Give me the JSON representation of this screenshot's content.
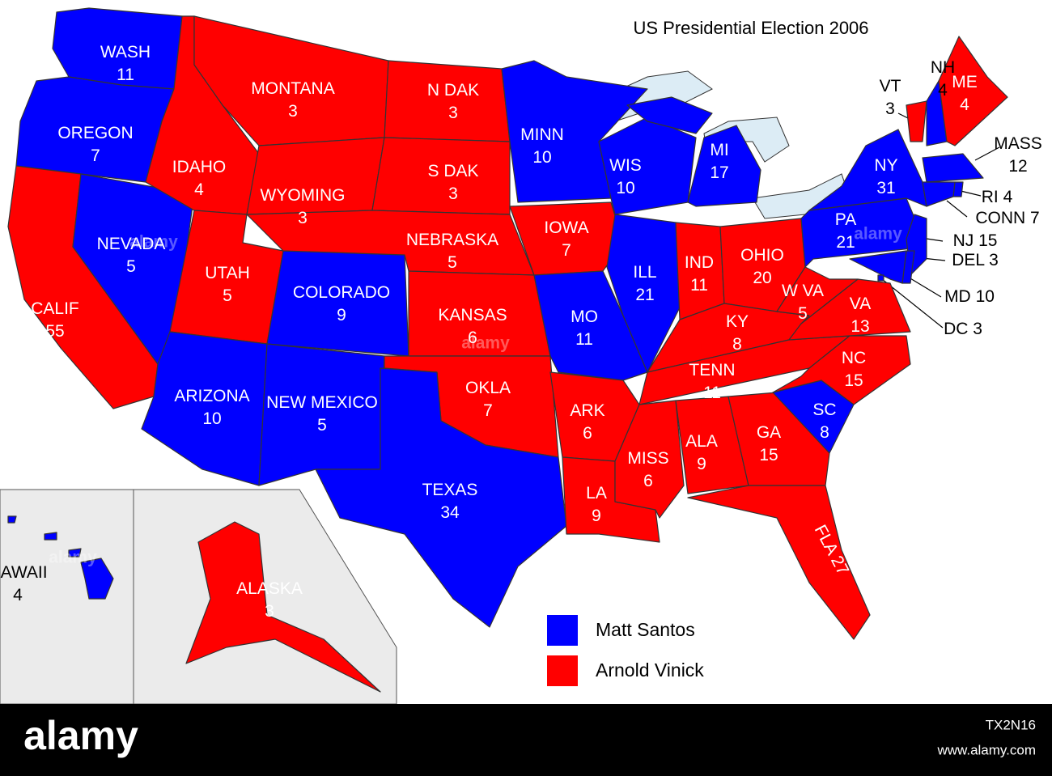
{
  "title": "US Presidential Election 2006",
  "legend": [
    {
      "name": "Matt Santos",
      "color": "#0000ff"
    },
    {
      "name": "Arnold Vinick",
      "color": "#ff0000"
    }
  ],
  "states": [
    {
      "name": "WASH",
      "votes": 11,
      "color": "#0000ff"
    },
    {
      "name": "OREGON",
      "votes": 7,
      "color": "#0000ff"
    },
    {
      "name": "CALIF",
      "votes": 55,
      "color": "#ff0000"
    },
    {
      "name": "NEVADA",
      "votes": 5,
      "color": "#0000ff"
    },
    {
      "name": "IDAHO",
      "votes": 4,
      "color": "#ff0000"
    },
    {
      "name": "MONTANA",
      "votes": 3,
      "color": "#ff0000"
    },
    {
      "name": "WYOMING",
      "votes": 3,
      "color": "#ff0000"
    },
    {
      "name": "UTAH",
      "votes": 5,
      "color": "#ff0000"
    },
    {
      "name": "COLORADO",
      "votes": 9,
      "color": "#0000ff"
    },
    {
      "name": "ARIZONA",
      "votes": 10,
      "color": "#0000ff"
    },
    {
      "name": "NEW MEXICO",
      "votes": 5,
      "color": "#0000ff"
    },
    {
      "name": "N DAK",
      "votes": 3,
      "color": "#ff0000"
    },
    {
      "name": "S DAK",
      "votes": 3,
      "color": "#ff0000"
    },
    {
      "name": "NEBRASKA",
      "votes": 5,
      "color": "#ff0000"
    },
    {
      "name": "KANSAS",
      "votes": 6,
      "color": "#ff0000"
    },
    {
      "name": "OKLA",
      "votes": 7,
      "color": "#ff0000"
    },
    {
      "name": "TEXAS",
      "votes": 34,
      "color": "#0000ff"
    },
    {
      "name": "MINN",
      "votes": 10,
      "color": "#0000ff"
    },
    {
      "name": "IOWA",
      "votes": 7,
      "color": "#ff0000"
    },
    {
      "name": "MO",
      "votes": 11,
      "color": "#0000ff"
    },
    {
      "name": "ARK",
      "votes": 6,
      "color": "#ff0000"
    },
    {
      "name": "LA",
      "votes": 9,
      "color": "#ff0000"
    },
    {
      "name": "WIS",
      "votes": 10,
      "color": "#0000ff"
    },
    {
      "name": "ILL",
      "votes": 21,
      "color": "#0000ff"
    },
    {
      "name": "MI",
      "votes": 17,
      "color": "#0000ff"
    },
    {
      "name": "IND",
      "votes": 11,
      "color": "#ff0000"
    },
    {
      "name": "OHIO",
      "votes": 20,
      "color": "#ff0000"
    },
    {
      "name": "KY",
      "votes": 8,
      "color": "#ff0000"
    },
    {
      "name": "TENN",
      "votes": 11,
      "color": "#ff0000"
    },
    {
      "name": "MISS",
      "votes": 6,
      "color": "#ff0000"
    },
    {
      "name": "ALA",
      "votes": 9,
      "color": "#ff0000"
    },
    {
      "name": "GA",
      "votes": 15,
      "color": "#ff0000"
    },
    {
      "name": "SC",
      "votes": 8,
      "color": "#0000ff"
    },
    {
      "name": "NC",
      "votes": 15,
      "color": "#ff0000"
    },
    {
      "name": "VA",
      "votes": 13,
      "color": "#ff0000"
    },
    {
      "name": "W VA",
      "votes": 5,
      "color": "#ff0000"
    },
    {
      "name": "FLA",
      "votes": 27,
      "color": "#ff0000"
    },
    {
      "name": "PA",
      "votes": 21,
      "color": "#0000ff"
    },
    {
      "name": "NY",
      "votes": 31,
      "color": "#0000ff"
    },
    {
      "name": "VT",
      "votes": 3,
      "color": "#ff0000"
    },
    {
      "name": "NH",
      "votes": 4,
      "color": "#0000ff"
    },
    {
      "name": "ME",
      "votes": 4,
      "color": "#ff0000"
    },
    {
      "name": "MASS",
      "votes": 12,
      "color": "#0000ff"
    },
    {
      "name": "RI",
      "votes": 4,
      "color": "#0000ff"
    },
    {
      "name": "CONN",
      "votes": 7,
      "color": "#0000ff"
    },
    {
      "name": "NJ",
      "votes": 15,
      "color": "#0000ff"
    },
    {
      "name": "DEL",
      "votes": 3,
      "color": "#0000ff"
    },
    {
      "name": "MD",
      "votes": 10,
      "color": "#0000ff"
    },
    {
      "name": "DC",
      "votes": 3,
      "color": "#0000ff"
    },
    {
      "name": "HAWAII",
      "votes": 4,
      "color": "#0000ff"
    },
    {
      "name": "ALASKA",
      "votes": 3,
      "color": "#ff0000"
    }
  ],
  "watermark": "alamy",
  "footer": {
    "brand": "alamy",
    "image_id": "TX2N16",
    "url": "www.alamy.com"
  }
}
